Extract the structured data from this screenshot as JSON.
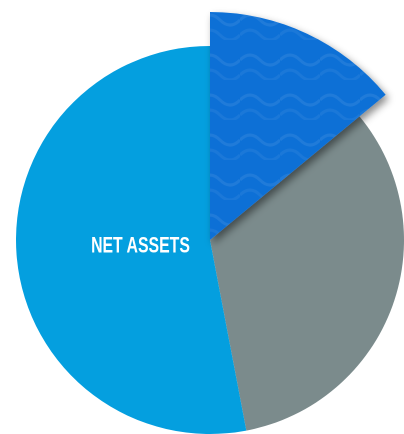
{
  "chart_data": {
    "type": "pie",
    "categories": [
      null,
      null,
      "NET ASSETS"
    ],
    "values": [
      14,
      33,
      53
    ],
    "colors": [
      "#0a6fd6",
      "#7b8b8c",
      "#049fdf"
    ],
    "explode": [
      true,
      false,
      false
    ]
  }
}
